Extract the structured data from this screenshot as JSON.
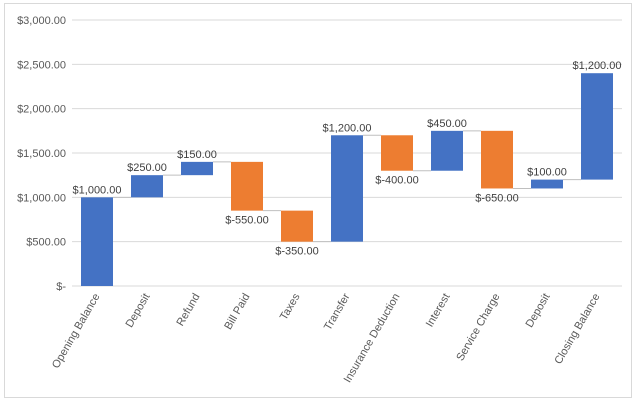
{
  "chart_data": {
    "type": "bar",
    "subtype": "waterfall",
    "categories": [
      "Opening Balance",
      "Deposit",
      "Refund",
      "Bill Paid",
      "Taxes",
      "Transfer",
      "Insurance Deduction",
      "Interest",
      "Service Charge",
      "Deposit",
      "Closing Balance"
    ],
    "values": [
      1000,
      250,
      150,
      -550,
      -350,
      1200,
      -400,
      450,
      -650,
      100,
      1200
    ],
    "bar_ranges": [
      [
        0,
        1000
      ],
      [
        1000,
        1250
      ],
      [
        1250,
        1400
      ],
      [
        850,
        1400
      ],
      [
        500,
        850
      ],
      [
        500,
        1700
      ],
      [
        1300,
        1700
      ],
      [
        1300,
        1750
      ],
      [
        1100,
        1750
      ],
      [
        1100,
        1200
      ],
      [
        1200,
        2400
      ]
    ],
    "data_labels": [
      "$1,000.00",
      "$250.00",
      "$150.00",
      "$-550.00",
      "$-350.00",
      "$1,200.00",
      "$-400.00",
      "$450.00",
      "$-650.00",
      "$100.00",
      "$1,200.00"
    ],
    "yticks": [
      0,
      500,
      1000,
      1500,
      2000,
      2500,
      3000
    ],
    "ytick_labels": [
      "$-",
      "$500.00",
      "$1,000.00",
      "$1,500.00",
      "$2,000.00",
      "$2,500.00",
      "$3,000.00"
    ],
    "ylim": [
      0,
      3000
    ],
    "title": "",
    "xlabel": "",
    "ylabel": "",
    "grid": true,
    "legend": "none",
    "colors": {
      "increase": "#4472C4",
      "decrease": "#ED7D31",
      "grid": "#d9d9d9",
      "connector": "#bfbfbf"
    }
  }
}
